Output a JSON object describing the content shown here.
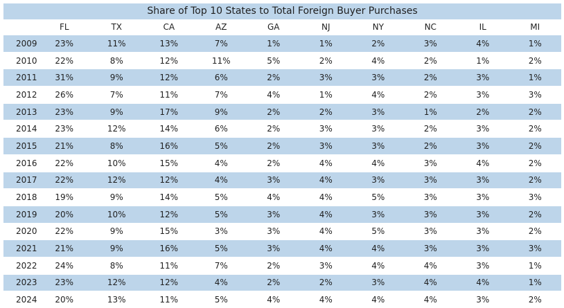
{
  "chart_data": {
    "type": "table",
    "title": "Share of Top 10 States to Total Foreign Buyer Purchases",
    "columns": [
      "FL",
      "TX",
      "CA",
      "AZ",
      "GA",
      "NJ",
      "NY",
      "NC",
      "IL",
      "MI"
    ],
    "rows": [
      {
        "year": "2009",
        "values": [
          "23%",
          "11%",
          "13%",
          "7%",
          "1%",
          "1%",
          "2%",
          "3%",
          "4%",
          "1%"
        ]
      },
      {
        "year": "2010",
        "values": [
          "22%",
          "8%",
          "12%",
          "11%",
          "5%",
          "2%",
          "4%",
          "2%",
          "1%",
          "2%"
        ]
      },
      {
        "year": "2011",
        "values": [
          "31%",
          "9%",
          "12%",
          "6%",
          "2%",
          "3%",
          "3%",
          "2%",
          "3%",
          "1%"
        ]
      },
      {
        "year": "2012",
        "values": [
          "26%",
          "7%",
          "11%",
          "7%",
          "4%",
          "1%",
          "4%",
          "2%",
          "3%",
          "3%"
        ]
      },
      {
        "year": "2013",
        "values": [
          "23%",
          "9%",
          "17%",
          "9%",
          "2%",
          "2%",
          "3%",
          "1%",
          "2%",
          "2%"
        ]
      },
      {
        "year": "2014",
        "values": [
          "23%",
          "12%",
          "14%",
          "6%",
          "2%",
          "3%",
          "3%",
          "2%",
          "3%",
          "2%"
        ]
      },
      {
        "year": "2015",
        "values": [
          "21%",
          "8%",
          "16%",
          "5%",
          "2%",
          "3%",
          "3%",
          "2%",
          "3%",
          "2%"
        ]
      },
      {
        "year": "2016",
        "values": [
          "22%",
          "10%",
          "15%",
          "4%",
          "2%",
          "4%",
          "4%",
          "3%",
          "4%",
          "2%"
        ]
      },
      {
        "year": "2017",
        "values": [
          "22%",
          "12%",
          "12%",
          "4%",
          "3%",
          "4%",
          "3%",
          "3%",
          "3%",
          "2%"
        ]
      },
      {
        "year": "2018",
        "values": [
          "19%",
          "9%",
          "14%",
          "5%",
          "4%",
          "4%",
          "5%",
          "3%",
          "3%",
          "3%"
        ]
      },
      {
        "year": "2019",
        "values": [
          "20%",
          "10%",
          "12%",
          "5%",
          "3%",
          "4%",
          "3%",
          "3%",
          "3%",
          "2%"
        ]
      },
      {
        "year": "2020",
        "values": [
          "22%",
          "9%",
          "15%",
          "3%",
          "3%",
          "4%",
          "5%",
          "3%",
          "3%",
          "2%"
        ]
      },
      {
        "year": "2021",
        "values": [
          "21%",
          "9%",
          "16%",
          "5%",
          "3%",
          "4%",
          "4%",
          "3%",
          "3%",
          "3%"
        ]
      },
      {
        "year": "2022",
        "values": [
          "24%",
          "8%",
          "11%",
          "7%",
          "2%",
          "3%",
          "4%",
          "4%",
          "3%",
          "1%"
        ]
      },
      {
        "year": "2023",
        "values": [
          "23%",
          "12%",
          "12%",
          "4%",
          "2%",
          "2%",
          "3%",
          "4%",
          "4%",
          "1%"
        ]
      },
      {
        "year": "2024",
        "values": [
          "20%",
          "13%",
          "11%",
          "5%",
          "4%",
          "4%",
          "4%",
          "4%",
          "3%",
          "2%"
        ]
      }
    ],
    "row_shading": "alternating",
    "colors": {
      "header_band": "#bdd5ea",
      "shaded_row": "#bdd5ea",
      "text": "#1f1f1f"
    }
  }
}
